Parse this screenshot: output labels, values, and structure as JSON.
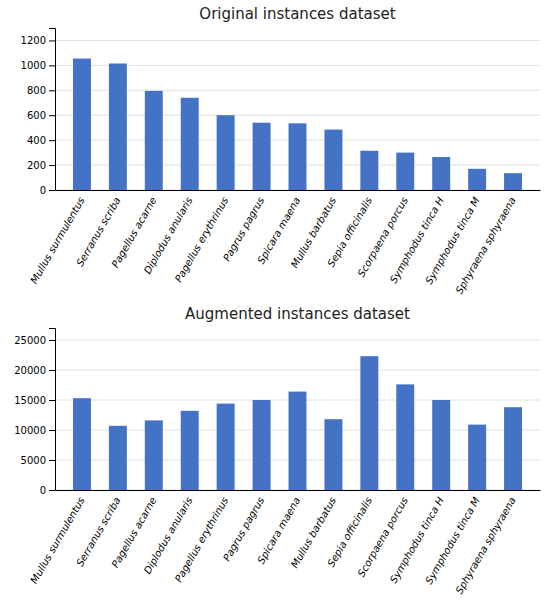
{
  "chart_data": [
    {
      "type": "bar",
      "title": "Original instances dataset",
      "categories": [
        "Mullus surmulentus",
        "Serranus scriba",
        "Pagellus acarne",
        "Diplodus anularis",
        "Pagellus erythrinus",
        "Pagrus pagrus",
        "Spicara maena",
        "Mullus barbatus",
        "Sepia officinalis",
        "Scorpaena porcus",
        "Symphodus tinca H",
        "Symphodus tinca M",
        "Sphyraena sphyraena"
      ],
      "values": [
        1055,
        1015,
        795,
        740,
        600,
        540,
        535,
        485,
        315,
        300,
        265,
        170,
        135
      ],
      "color": "#4472C4",
      "ylim": [
        0,
        1300
      ],
      "yticks": [
        0,
        200,
        400,
        600,
        800,
        1000,
        1200
      ],
      "grid": true
    },
    {
      "type": "bar",
      "title": "Augmented instances dataset",
      "categories": [
        "Mullus surmulentus",
        "Serranus scriba",
        "Pagellus acarne",
        "Diplodus anularis",
        "Pagellus erythrinus",
        "Pagrus pagrus",
        "Spicara maena",
        "Mullus barbatus",
        "Sepia officinalis",
        "Scorpaena porcus",
        "Symphodus tinca H",
        "Symphodus tinca M",
        "Sphyraena sphyraena"
      ],
      "values": [
        15300,
        10700,
        11600,
        13200,
        14400,
        15000,
        16400,
        11800,
        22300,
        17600,
        15000,
        10900,
        13800
      ],
      "color": "#4472C4",
      "ylim": [
        0,
        27000
      ],
      "yticks": [
        0,
        5000,
        10000,
        15000,
        20000,
        25000
      ],
      "grid": true
    }
  ]
}
